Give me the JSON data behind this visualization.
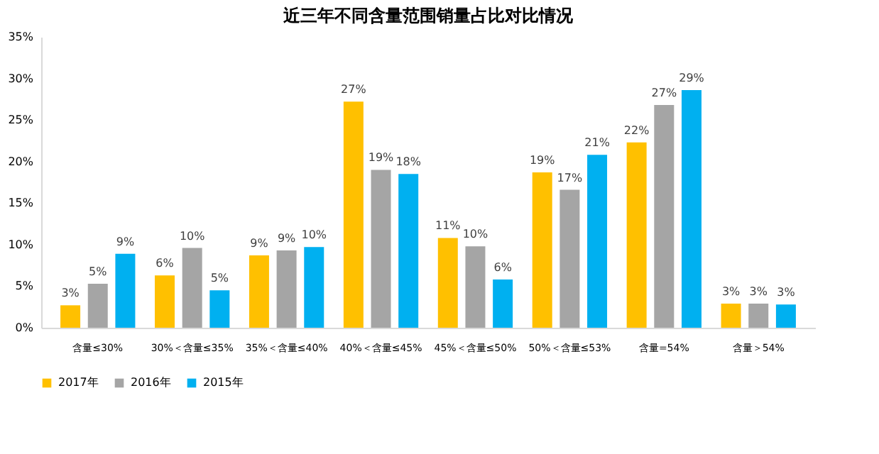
{
  "chart_data": {
    "type": "bar",
    "title": "近三年不同含量范围销量占比对比情况",
    "categories": [
      "含量≤30%",
      "30%＜含量≤35%",
      "35%＜含量≤40%",
      "40%＜含量≤45%",
      "45%＜含量≤50%",
      "50%＜含量≤53%",
      "含量=54%",
      "含量＞54%"
    ],
    "series": [
      {
        "name": "2017年",
        "color": "#ffc000",
        "values": [
          2.7,
          6.3,
          8.7,
          27.2,
          10.8,
          18.7,
          22.3,
          2.9
        ],
        "value_labels": [
          "3%",
          "6%",
          "9%",
          "27%",
          "11%",
          "19%",
          "22%",
          "3%"
        ]
      },
      {
        "name": "2016年",
        "color": "#a5a5a5",
        "values": [
          5.3,
          9.6,
          9.3,
          19.0,
          9.8,
          16.6,
          26.8,
          2.9
        ],
        "value_labels": [
          "5%",
          "10%",
          "9%",
          "19%",
          "10%",
          "17%",
          "27%",
          "3%"
        ]
      },
      {
        "name": "2015年",
        "color": "#00b0f0",
        "values": [
          8.9,
          4.5,
          9.7,
          18.5,
          5.8,
          20.8,
          28.6,
          2.8
        ],
        "value_labels": [
          "9%",
          "5%",
          "10%",
          "18%",
          "6%",
          "21%",
          "29%",
          "3%"
        ]
      }
    ],
    "ylim": [
      0,
      35
    ],
    "yticks": [
      {
        "value": 0,
        "label": "0%"
      },
      {
        "value": 5,
        "label": "5%"
      },
      {
        "value": 10,
        "label": "10%"
      },
      {
        "value": 15,
        "label": "15%"
      },
      {
        "value": 20,
        "label": "20%"
      },
      {
        "value": 25,
        "label": "25%"
      },
      {
        "value": 30,
        "label": "30%"
      },
      {
        "value": 35,
        "label": "35%"
      }
    ],
    "grid": false,
    "legend": "bottom"
  }
}
